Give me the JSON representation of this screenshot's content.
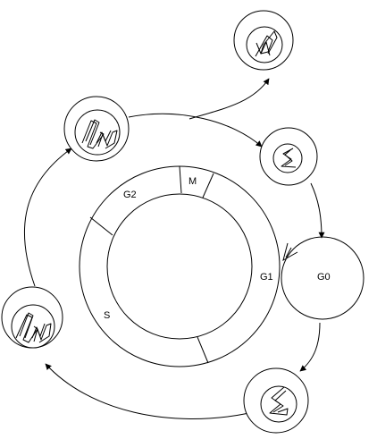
{
  "diagram": {
    "phase_labels": {
      "g2": "G2",
      "m": "M",
      "g1": "G1",
      "s": "S",
      "g0": "G0"
    },
    "cells": [
      {
        "id": "cell-top-right",
        "stage": "dividing"
      },
      {
        "id": "cell-top-left",
        "stage": "replicated"
      },
      {
        "id": "cell-right",
        "stage": "single"
      },
      {
        "id": "cell-left",
        "stage": "replicated"
      },
      {
        "id": "cell-bottom-right",
        "stage": "single"
      }
    ],
    "colors": {
      "stroke": "#000000",
      "fill": "#ffffff"
    }
  }
}
